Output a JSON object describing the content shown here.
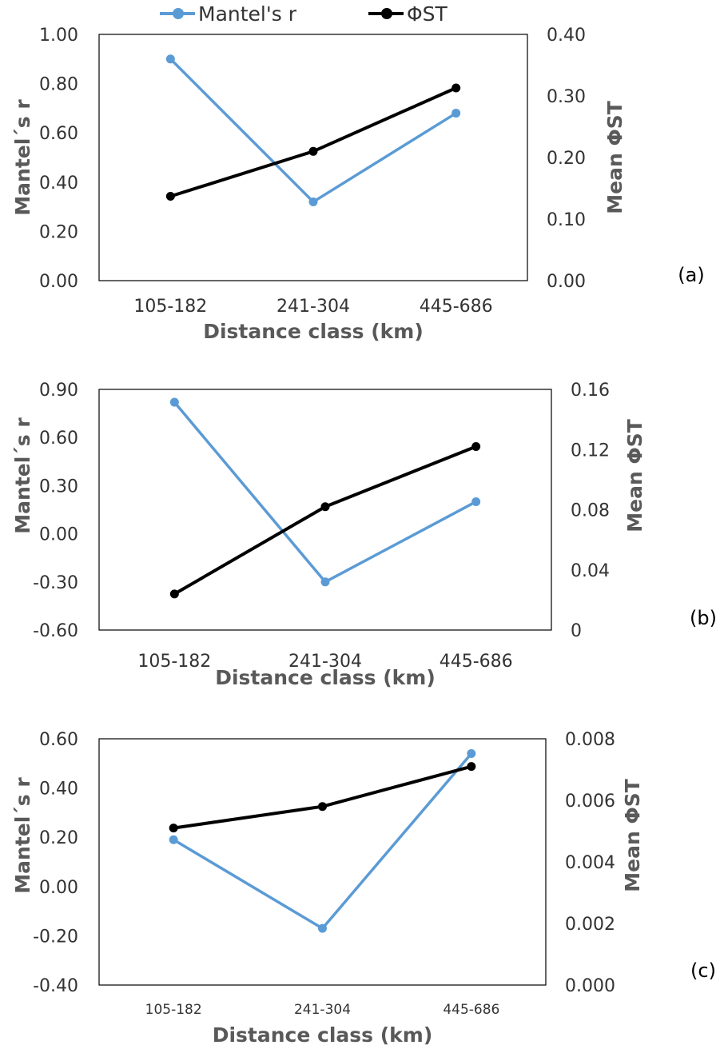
{
  "legend": [
    {
      "label": "Mantel's r",
      "color": "#5b9bd5"
    },
    {
      "label": "ΦST",
      "color": "#000000"
    }
  ],
  "chart_data": [
    {
      "type": "line",
      "panel_label": "(a)",
      "categories": [
        "105-182",
        "241-304",
        "445-686"
      ],
      "xlabel": "Distance class (km)",
      "ylabel": "Mantel´s r",
      "ylabel_right": "Mean ΦST",
      "ylim": [
        0,
        1
      ],
      "ylim_right": [
        0,
        0.4
      ],
      "yticks": [
        "0.00",
        "0.20",
        "0.40",
        "0.60",
        "0.80",
        "1.00"
      ],
      "yticks_right": [
        "0.00",
        "0.10",
        "0.20",
        "0.30",
        "0.40"
      ],
      "series": [
        {
          "name": "Mantel's r",
          "axis": "left",
          "color": "#5b9bd5",
          "values": [
            0.9,
            0.32,
            0.68
          ]
        },
        {
          "name": "ΦST",
          "axis": "right",
          "color": "#000000",
          "values": [
            0.137,
            0.21,
            0.313
          ]
        }
      ]
    },
    {
      "type": "line",
      "panel_label": "(b)",
      "categories": [
        "105-182",
        "241-304",
        "445-686"
      ],
      "xlabel": "Distance class (km)",
      "ylabel": "Mantel´s r",
      "ylabel_right": "Mean ΦST",
      "ylim": [
        -0.6,
        0.9
      ],
      "ylim_right": [
        0,
        0.16
      ],
      "yticks": [
        "-0.60",
        "-0.30",
        "0.00",
        "0.30",
        "0.60",
        "0.90"
      ],
      "yticks_right": [
        "0",
        "0.04",
        "0.08",
        "0.12",
        "0.16"
      ],
      "series": [
        {
          "name": "Mantel's r",
          "axis": "left",
          "color": "#5b9bd5",
          "values": [
            0.82,
            -0.3,
            0.2
          ]
        },
        {
          "name": "ΦST",
          "axis": "right",
          "color": "#000000",
          "values": [
            0.024,
            0.082,
            0.122
          ]
        }
      ]
    },
    {
      "type": "line",
      "panel_label": "(c)",
      "categories": [
        "105-182",
        "241-304",
        "445-686"
      ],
      "xlabel": "Distance class (km)",
      "ylabel": "Mantel´s r",
      "ylabel_right": "Mean ΦST",
      "ylim": [
        -0.4,
        0.6
      ],
      "ylim_right": [
        0,
        0.008
      ],
      "yticks": [
        "-0.40",
        "-0.20",
        "0.00",
        "0.20",
        "0.40",
        "0.60"
      ],
      "yticks_right": [
        "0.000",
        "0.002",
        "0.004",
        "0.006",
        "0.008"
      ],
      "series": [
        {
          "name": "Mantel's r",
          "axis": "left",
          "color": "#5b9bd5",
          "values": [
            0.19,
            -0.17,
            0.54
          ]
        },
        {
          "name": "ΦST",
          "axis": "right",
          "color": "#000000",
          "values": [
            0.0051,
            0.0058,
            0.0071
          ]
        }
      ]
    }
  ]
}
